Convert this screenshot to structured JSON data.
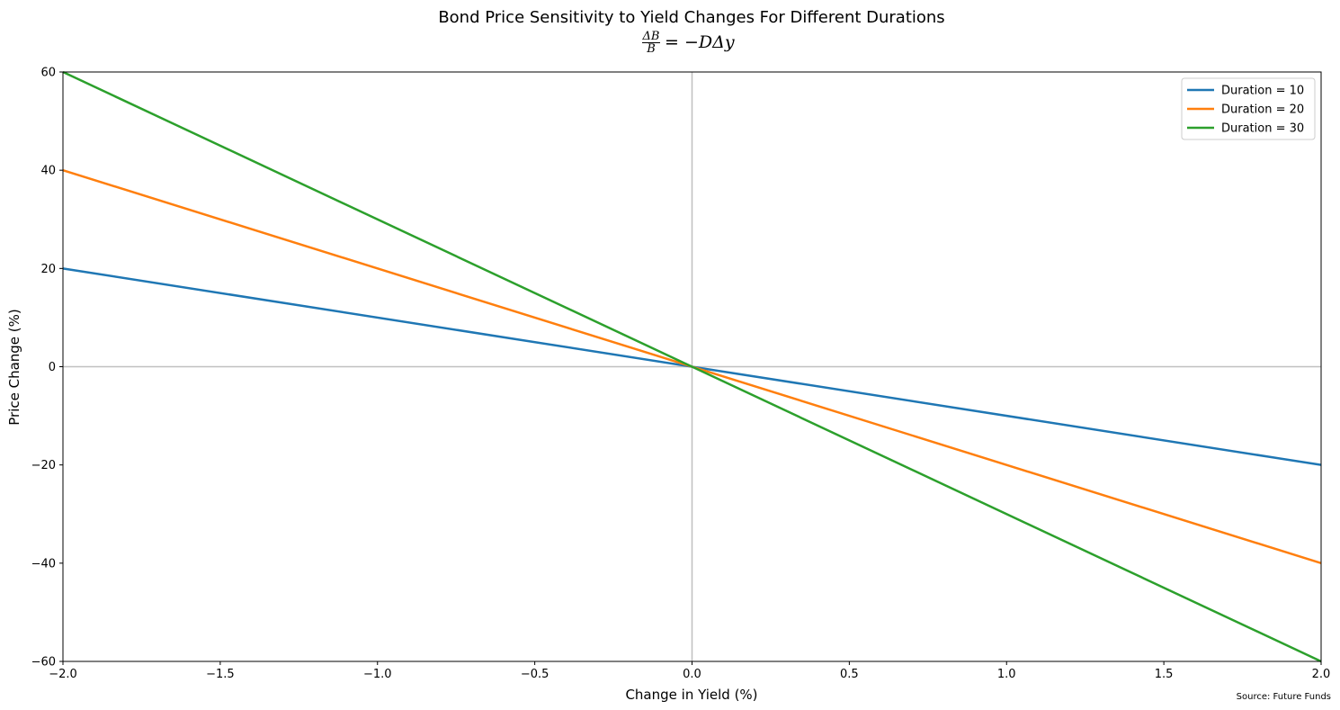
{
  "chart_data": {
    "type": "line",
    "title": "Bond Price Sensitivity to Yield Changes For Different Durations",
    "subtitle_equation": {
      "numerator": "ΔB",
      "denominator": "B",
      "rhs": "= −DΔy"
    },
    "xlabel": "Change in Yield (%)",
    "ylabel": "Price Change (%)",
    "xlim": [
      -2.0,
      2.0
    ],
    "ylim": [
      -60,
      60
    ],
    "xticks": [
      -2.0,
      -1.5,
      -1.0,
      -0.5,
      0.0,
      0.5,
      1.0,
      1.5,
      2.0
    ],
    "xtick_labels": [
      "−2.0",
      "−1.5",
      "−1.0",
      "−0.5",
      "0.0",
      "0.5",
      "1.0",
      "1.5",
      "2.0"
    ],
    "yticks": [
      -60,
      -40,
      -20,
      0,
      20,
      40,
      60
    ],
    "ytick_labels": [
      "−60",
      "−40",
      "−20",
      "0",
      "20",
      "40",
      "60"
    ],
    "reference_lines": {
      "x": 0,
      "y": 0,
      "color": "#c0c0c0"
    },
    "grid": false,
    "legend_position": "top-right",
    "series": [
      {
        "name": "Duration = 10",
        "color": "#1f77b4",
        "x": [
          -2.0,
          2.0
        ],
        "y": [
          20,
          -20
        ]
      },
      {
        "name": "Duration = 20",
        "color": "#ff7f0e",
        "x": [
          -2.0,
          2.0
        ],
        "y": [
          40,
          -40
        ]
      },
      {
        "name": "Duration = 30",
        "color": "#2ca02c",
        "x": [
          -2.0,
          2.0
        ],
        "y": [
          60,
          -60
        ]
      }
    ],
    "source_note": "Source: Future Funds"
  }
}
